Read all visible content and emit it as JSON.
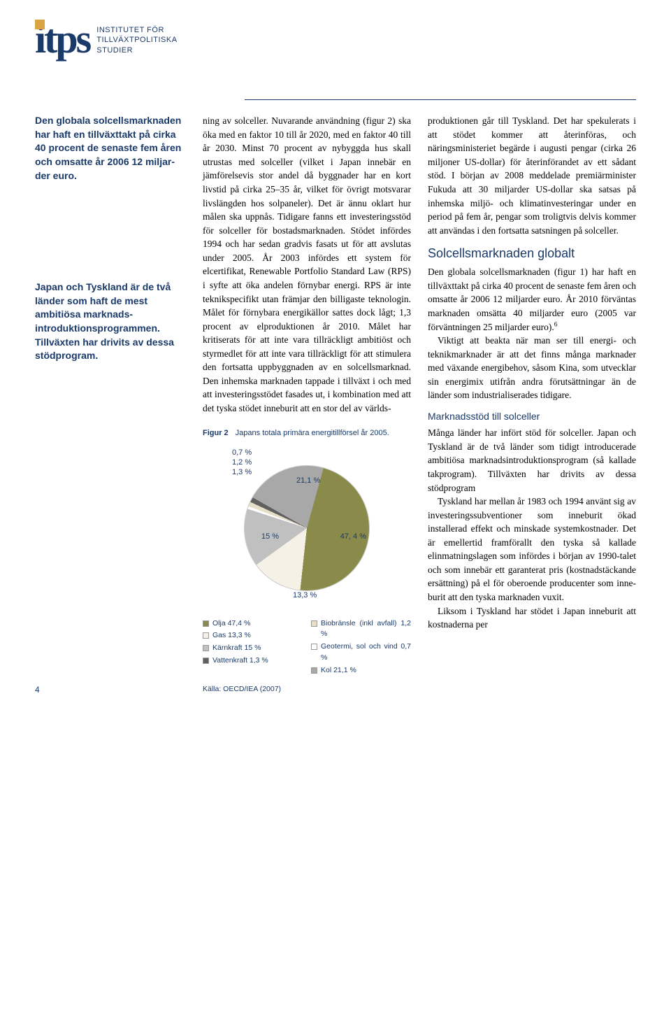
{
  "logo": {
    "mark": "itps",
    "text_line1": "INSTITUTET FÖR",
    "text_line2": "TILLVÄXTPOLITISKA",
    "text_line3": "STUDIER"
  },
  "sidebar": {
    "callout1": "Den globala solcellsmark­naden har haft en tillväxt­takt på cirka 40 procent de senaste fem åren och omsatte år 2006 12 miljar­der euro.",
    "callout2": "Japan och Tyskland är de två länder som haft de mest ambitiösa marknads­introduktionsprogrammen. Tillväxten har drivits av dessa stödprogram."
  },
  "column1": {
    "para1": "ning av solceller. Nuvarande använd­ning (figur 2) ska öka med en faktor 10 till år 2020, med en faktor 40 till år 2030. Minst 70 procent av nybyggda hus skall utrustas med solceller (vilket i Japan innebär en jämförelsevis stor andel då byggnader har en kort livstid på cirka 25–35 år, vilket för övrigt motsvarar livslängden hos solpaneler). Det är ännu oklart hur målen ska upp­nås. Tidigare fanns ett investeringsstöd för solceller för bostadsmarknaden. Stödet infördes 1994 och har sedan gradvis fasats ut för att avslutas under 2005. År 2003 infördes ett system för elcertifikat, Renewable Portfolio Standard Law (RPS) i syfte att öka andelen förnybar energi. RPS är inte teknikspecifikt utan främjar den bil­ligaste teknologin. Målet för förny­bara energikällor sattes dock lågt; 1,3 procent av elproduktionen år 2010. Målet har kritiserats för att inte vara tillräckligt ambitiöst och styrmedlet för att inte vara tillräckligt för att stimulera den fortsatta uppbyggnaden av en solcellsmarknad. Den inhemska marknaden tappade i tillväxt i och med att investeringsstödet fasades ut, i kombination med att det tyska stödet inneburit att en stor del av världs-"
  },
  "column2": {
    "para1": "produktionen går till Tyskland. Det har spekulerats i att stödet kommer att återinföras, och näringsministeriet begärde i augusti pengar (cirka 26 miljoner US-dollar) för återinförandet av ett sådant stöd.  I början av 2008 meddelade premiärminister Fukuda att 30 miljarder US-dollar ska satsas på inhemska miljö- och klimatinves­teringar under en period på fem år, pengar som troligtvis delvis kommer att användas i den fortsatta satsningen på solceller.",
    "heading1": "Solcellsmarknaden globalt",
    "para2": "Den globala solcellsmarknaden (figur 1) har haft en tillväxttakt på cirka 40 procent de senaste fem åren och omsatte år 2006 12 miljarder euro. År 2010 förväntas marknaden omsätta 40 miljarder euro (2005 var förvänt­ningen 25 miljarder euro).",
    "footnote_mark": "6",
    "para3": "Viktigt att beakta när man ser till energi- och teknikmarknader är att det finns många marknader med väx­ande energibehov, såsom Kina, som utvecklar sin energimix utifrån andra förutsättningar än de länder som indu­strialiserades tidigare.",
    "heading2": "Marknadsstöd till solceller",
    "para4": "Många länder har infört stöd för sol­celler. Japan och Tyskland är de två länder som tidigt introducerade ambi­tiösa marknadsintroduktionsprogram (så kallade takprogram). Tillväxten har drivits av dessa stödprogram",
    "para5": "Tyskland har mellan år 1983 och 1994 använt sig av investeringssubven­tioner som inneburit ökad installerad effekt och minskade systemkostna­der. Det är emellertid framförallt den tyska så kallade elinmatningslagen som infördes i början av 1990-talet och som innebär ett garanterat pris (kostnadstäckande ersättning) på el för oberoende producenter som inne­burit att den tyska marknaden vuxit.",
    "para6": "Liksom i Tyskland har stödet i Japan inneburit att kostnaderna per"
  },
  "figure": {
    "label": "Figur 2",
    "caption": "Japans totala primära energitill­försel år 2005.",
    "source": "Källa: OECD/IEA (2007)",
    "chart": {
      "type": "pie",
      "background_color": "#ffffff",
      "slices": [
        {
          "label": "Olja 47,4 %",
          "value": 47.4,
          "color": "#8a8a4a",
          "on_chart": "47, 4 %"
        },
        {
          "label": "Gas 13,3 %",
          "value": 13.3,
          "color": "#f5f1e6",
          "on_chart": "13,3 %"
        },
        {
          "label": "Kärnkraft 15 %",
          "value": 15.0,
          "color": "#c0c0c0",
          "on_chart": "15 %"
        },
        {
          "label": "Vattenkraft 1,3 %",
          "value": 1.3,
          "color": "#606060",
          "on_chart": "1,3 %"
        },
        {
          "label": "Biobränsle (inkl avfall) 1,2 %",
          "value": 1.2,
          "color": "#e5dfc8",
          "on_chart": "1,2 %"
        },
        {
          "label": "Geotermi, sol och vind 0,7 %",
          "value": 0.7,
          "color": "#ffffff",
          "on_chart": "0,7 %"
        },
        {
          "label": "Kol 21,1 %",
          "value": 21.1,
          "color": "#a8a8a8",
          "on_chart": "21,1 %"
        }
      ],
      "annotation_labels": {
        "left_group": "0,7 %\n1,2 %\n1,3 %",
        "top": "21,1 %",
        "mid_left": "15 %",
        "bottom": "13,3 %",
        "right": "47, 4 %"
      },
      "label_color": "#1a3a6a",
      "label_fontsize": 11,
      "legend_fontsize": 10.5
    }
  },
  "page_number": "4"
}
